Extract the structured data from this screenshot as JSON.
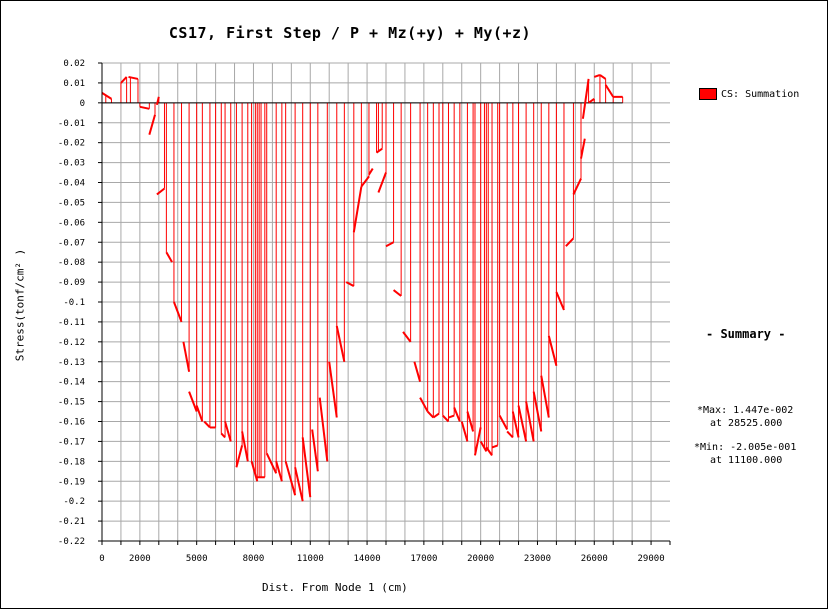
{
  "chart_data": {
    "type": "line",
    "title": "CS17, First Step / P + Mz(+y) + My(+z)",
    "xlabel": "Dist. From Node 1 (cm)",
    "ylabel": "Stress(tonf/cm² )",
    "xlim": [
      0,
      30000
    ],
    "ylim": [
      -0.22,
      0.02
    ],
    "x_ticks": [
      0,
      2000,
      5000,
      8000,
      11000,
      14000,
      17000,
      20000,
      23000,
      26000,
      29000
    ],
    "y_ticks": [
      0.02,
      0.01,
      0,
      -0.01,
      -0.02,
      -0.03,
      -0.04,
      -0.05,
      -0.06,
      -0.07,
      -0.08,
      -0.09,
      -0.1,
      -0.11,
      -0.12,
      -0.13,
      -0.14,
      -0.15,
      -0.16,
      -0.17,
      -0.18,
      -0.19,
      -0.2,
      -0.21,
      -0.22
    ],
    "grid": true,
    "legend_position": "right",
    "series": [
      {
        "name": "CS: Summation",
        "color": "#ff0000",
        "segments": [
          [
            [
              0,
              0.005
            ],
            [
              500,
              0.002
            ]
          ],
          [
            [
              1000,
              0.01
            ],
            [
              1300,
              0.013
            ]
          ],
          [
            [
              1400,
              0.013
            ],
            [
              1900,
              0.012
            ]
          ],
          [
            [
              2000,
              -0.002
            ],
            [
              2500,
              -0.003
            ]
          ],
          [
            [
              2500,
              -0.016
            ],
            [
              2800,
              -0.006
            ]
          ],
          [
            [
              2900,
              -0.001
            ],
            [
              3000,
              0.003
            ]
          ],
          [
            [
              2900,
              -0.046
            ],
            [
              3300,
              -0.043
            ]
          ],
          [
            [
              3400,
              -0.075
            ],
            [
              3700,
              -0.08
            ]
          ],
          [
            [
              3800,
              -0.1
            ],
            [
              4200,
              -0.11
            ]
          ],
          [
            [
              4300,
              -0.12
            ],
            [
              4600,
              -0.135
            ]
          ],
          [
            [
              4600,
              -0.145
            ],
            [
              5000,
              -0.155
            ]
          ],
          [
            [
              5000,
              -0.152
            ],
            [
              5300,
              -0.16
            ]
          ],
          [
            [
              5400,
              -0.16
            ],
            [
              5700,
              -0.163
            ]
          ],
          [
            [
              5700,
              -0.163
            ],
            [
              6000,
              -0.163
            ]
          ],
          [
            [
              6300,
              -0.166
            ],
            [
              6500,
              -0.168
            ]
          ],
          [
            [
              6500,
              -0.16
            ],
            [
              6800,
              -0.17
            ]
          ],
          [
            [
              7100,
              -0.183
            ],
            [
              7400,
              -0.172
            ]
          ],
          [
            [
              7400,
              -0.165
            ],
            [
              7700,
              -0.18
            ]
          ],
          [
            [
              7900,
              -0.18
            ],
            [
              8200,
              -0.19
            ]
          ],
          [
            [
              8200,
              -0.188
            ],
            [
              8600,
              -0.188
            ]
          ],
          [
            [
              8700,
              -0.176
            ],
            [
              9200,
              -0.186
            ]
          ],
          [
            [
              9200,
              -0.18
            ],
            [
              9500,
              -0.19
            ]
          ],
          [
            [
              9700,
              -0.18
            ],
            [
              10200,
              -0.197
            ]
          ],
          [
            [
              10200,
              -0.183
            ],
            [
              10600,
              -0.2
            ]
          ],
          [
            [
              10600,
              -0.168
            ],
            [
              11000,
              -0.198
            ]
          ],
          [
            [
              11100,
              -0.164
            ],
            [
              11400,
              -0.185
            ]
          ],
          [
            [
              11500,
              -0.148
            ],
            [
              11900,
              -0.18
            ]
          ],
          [
            [
              12000,
              -0.13
            ],
            [
              12400,
              -0.158
            ]
          ],
          [
            [
              12400,
              -0.112
            ],
            [
              12800,
              -0.13
            ]
          ],
          [
            [
              12900,
              -0.09
            ],
            [
              13300,
              -0.092
            ]
          ],
          [
            [
              13300,
              -0.065
            ],
            [
              13700,
              -0.042
            ]
          ],
          [
            [
              13700,
              -0.042
            ],
            [
              14100,
              -0.037
            ]
          ],
          [
            [
              14100,
              -0.036
            ],
            [
              14300,
              -0.033
            ]
          ],
          [
            [
              14500,
              -0.025
            ],
            [
              14800,
              -0.023
            ]
          ],
          [
            [
              14600,
              -0.045
            ],
            [
              15000,
              -0.035
            ]
          ],
          [
            [
              15000,
              -0.072
            ],
            [
              15400,
              -0.07
            ]
          ],
          [
            [
              15400,
              -0.094
            ],
            [
              15800,
              -0.097
            ]
          ],
          [
            [
              15900,
              -0.115
            ],
            [
              16300,
              -0.12
            ]
          ],
          [
            [
              16500,
              -0.13
            ],
            [
              16800,
              -0.14
            ]
          ],
          [
            [
              16800,
              -0.148
            ],
            [
              17200,
              -0.155
            ]
          ],
          [
            [
              17200,
              -0.155
            ],
            [
              17500,
              -0.158
            ]
          ],
          [
            [
              17500,
              -0.158
            ],
            [
              17800,
              -0.156
            ]
          ],
          [
            [
              18000,
              -0.157
            ],
            [
              18300,
              -0.16
            ]
          ],
          [
            [
              18300,
              -0.158
            ],
            [
              18600,
              -0.157
            ]
          ],
          [
            [
              18600,
              -0.153
            ],
            [
              18900,
              -0.16
            ]
          ],
          [
            [
              19000,
              -0.16
            ],
            [
              19300,
              -0.17
            ]
          ],
          [
            [
              19300,
              -0.155
            ],
            [
              19600,
              -0.165
            ]
          ],
          [
            [
              19700,
              -0.177
            ],
            [
              20000,
              -0.163
            ]
          ],
          [
            [
              20000,
              -0.17
            ],
            [
              20300,
              -0.175
            ]
          ],
          [
            [
              20300,
              -0.173
            ],
            [
              20600,
              -0.177
            ]
          ],
          [
            [
              20600,
              -0.173
            ],
            [
              20900,
              -0.172
            ]
          ],
          [
            [
              21000,
              -0.157
            ],
            [
              21400,
              -0.164
            ]
          ],
          [
            [
              21400,
              -0.165
            ],
            [
              21700,
              -0.168
            ]
          ],
          [
            [
              21700,
              -0.155
            ],
            [
              22000,
              -0.168
            ]
          ],
          [
            [
              22000,
              -0.152
            ],
            [
              22400,
              -0.17
            ]
          ],
          [
            [
              22400,
              -0.15
            ],
            [
              22800,
              -0.17
            ]
          ],
          [
            [
              22800,
              -0.145
            ],
            [
              23200,
              -0.165
            ]
          ],
          [
            [
              23200,
              -0.137
            ],
            [
              23600,
              -0.158
            ]
          ],
          [
            [
              23600,
              -0.117
            ],
            [
              24000,
              -0.132
            ]
          ],
          [
            [
              24000,
              -0.095
            ],
            [
              24400,
              -0.104
            ]
          ],
          [
            [
              24500,
              -0.072
            ],
            [
              24900,
              -0.068
            ]
          ],
          [
            [
              24900,
              -0.046
            ],
            [
              25300,
              -0.038
            ]
          ],
          [
            [
              25300,
              -0.028
            ],
            [
              25500,
              -0.018
            ]
          ],
          [
            [
              25400,
              -0.008
            ],
            [
              25700,
              0.012
            ]
          ],
          [
            [
              25700,
              0.0
            ],
            [
              26000,
              0.002
            ]
          ],
          [
            [
              26000,
              0.013
            ],
            [
              26300,
              0.014
            ]
          ],
          [
            [
              26300,
              0.014
            ],
            [
              26600,
              0.012
            ]
          ],
          [
            [
              26600,
              0.009
            ],
            [
              27000,
              0.003
            ]
          ],
          [
            [
              27000,
              0.003
            ],
            [
              27500,
              0.003
            ]
          ]
        ],
        "drop_x": [
          0,
          200,
          500,
          1000,
          1300,
          1500,
          1900,
          2000,
          2500,
          2800,
          3000,
          3300,
          3400,
          3800,
          4200,
          4600,
          5000,
          5300,
          5700,
          6000,
          6300,
          6500,
          6800,
          7100,
          7400,
          7700,
          7900,
          8100,
          8200,
          8300,
          8400,
          8600,
          8700,
          9200,
          9500,
          9700,
          10200,
          10600,
          11000,
          11400,
          11900,
          12400,
          12800,
          13300,
          13700,
          14100,
          14500,
          14600,
          14800,
          15000,
          15400,
          15800,
          16300,
          16800,
          17200,
          17500,
          17800,
          18000,
          18300,
          18600,
          18900,
          19300,
          19600,
          19700,
          20000,
          20200,
          20300,
          20400,
          20600,
          20900,
          21000,
          21400,
          21700,
          22000,
          22400,
          22800,
          23200,
          23600,
          24000,
          24400,
          24900,
          25300,
          25700,
          26000,
          26300,
          26600,
          27000,
          27500
        ]
      }
    ]
  },
  "legend": {
    "label": "CS: Summation"
  },
  "summary": {
    "title": "- Summary -",
    "max_line": "*Max: 1.447e-002",
    "max_at": "at 28525.000",
    "min_line": "*Min: -2.005e-001",
    "min_at": "at 11100.000"
  }
}
